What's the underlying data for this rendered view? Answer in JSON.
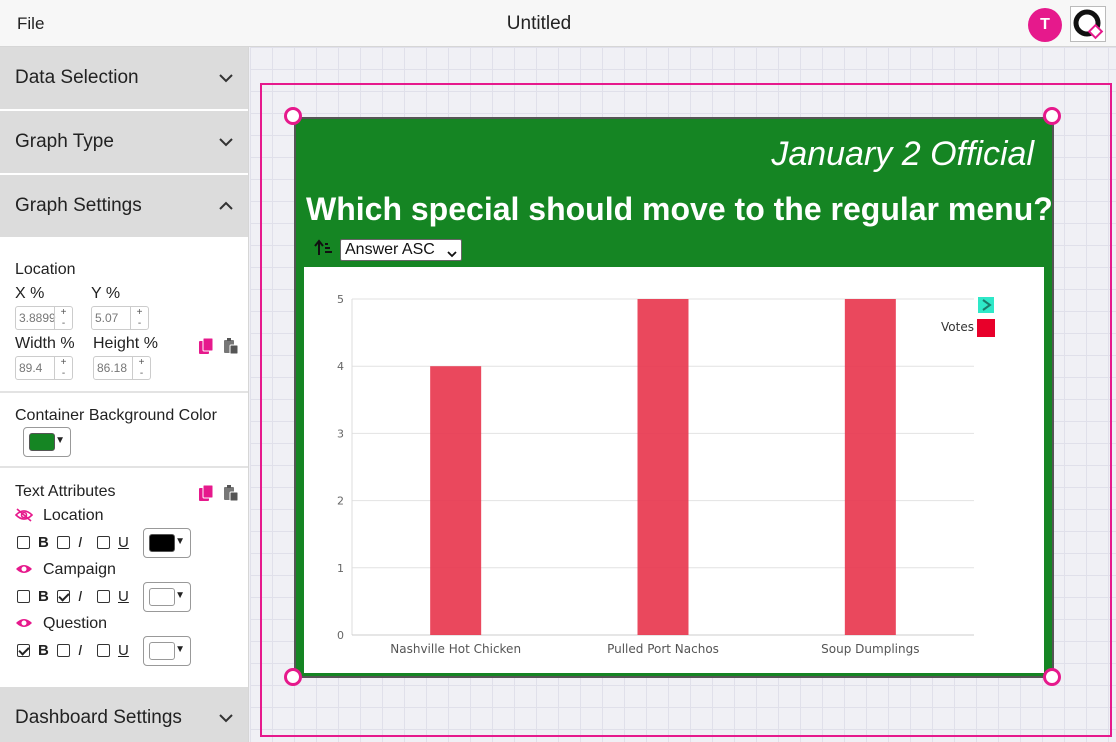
{
  "app": {
    "menu_file": "File",
    "doc_title": "Untitled",
    "avatar_initial": "T",
    "accent_color": "#e6198c"
  },
  "sidebar": {
    "data_selection": "Data Selection",
    "graph_type": "Graph Type",
    "graph_settings": "Graph Settings",
    "dashboard_settings": "Dashboard Settings",
    "location": {
      "label": "Location",
      "x_label": "X %",
      "x_value": "3.8899",
      "y_label": "Y %",
      "y_value": "5.07",
      "width_label": "Width %",
      "width_value": "89.4",
      "height_label": "Height %",
      "height_value": "86.18"
    },
    "container_bg": {
      "label": "Container Background Color",
      "color": "#158523"
    },
    "text_attributes": {
      "label": "Text Attributes",
      "bold_glyph": "B",
      "italic_glyph": "I",
      "underline_glyph": "U",
      "rows": [
        {
          "name": "Location",
          "visible": false,
          "bold": false,
          "italic": false,
          "underline": false,
          "color": "#000000"
        },
        {
          "name": "Campaign",
          "visible": true,
          "bold": false,
          "italic": true,
          "underline": false,
          "color": "#ffffff"
        },
        {
          "name": "Question",
          "visible": true,
          "bold": true,
          "italic": false,
          "underline": false,
          "color": "#ffffff"
        }
      ]
    }
  },
  "widget": {
    "campaign": "January 2 Official",
    "question": "Which special should move to the regular menu?",
    "sort_value": "Answer ASC",
    "background_color": "#158523"
  },
  "chart_data": {
    "type": "bar",
    "categories": [
      "Nashville Hot Chicken",
      "Pulled Port Nachos",
      "Soup Dumplings"
    ],
    "series": [
      {
        "name": "Votes",
        "values": [
          4,
          5,
          5
        ],
        "color": "#e8384f"
      }
    ],
    "yticks": [
      "0",
      "1",
      "2",
      "3",
      "4",
      "5"
    ],
    "ylim": [
      0,
      5
    ],
    "grid": true,
    "legend_position": "top-right"
  }
}
